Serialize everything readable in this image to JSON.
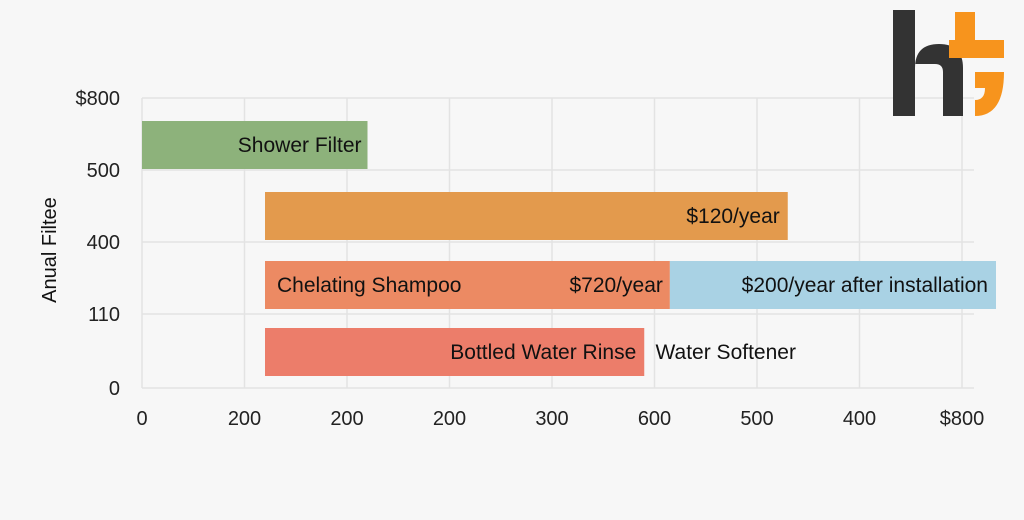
{
  "chart_data": {
    "type": "bar",
    "orientation": "horizontal",
    "ylabel": "Anual Filtee",
    "x_ticks": [
      "0",
      "200",
      "200",
      "200",
      "300",
      "600",
      "500",
      "400",
      "$800"
    ],
    "y_ticks": [
      "$800",
      "500",
      "400",
      "110",
      "0"
    ],
    "grid": true,
    "bars": [
      {
        "row": 0,
        "start_tick": 0,
        "end_tick": 2.2,
        "color": "#8db27b",
        "labels": [
          "Shower Filter"
        ]
      },
      {
        "row": 1,
        "start_tick": 1.2,
        "end_tick": 6.3,
        "color": "#e39a4d",
        "labels": [
          "$120/year"
        ]
      },
      {
        "row": 2,
        "start_tick": 1.2,
        "end_tick": 5.15,
        "color": "#ec8a63",
        "labels": [
          "Chelating Shampoo",
          "$720/year"
        ]
      },
      {
        "row": 2,
        "start_tick": 5.15,
        "end_tick": 8.4,
        "color": "#a9d2e4",
        "labels": [
          "$200/year after installation"
        ]
      },
      {
        "row": 3,
        "start_tick": 1.2,
        "end_tick": 4.9,
        "color": "#ec7d6a",
        "labels": [
          "Bottled Water Rinse"
        ]
      }
    ],
    "annotations": [
      {
        "text": "Water Softener",
        "row": 3,
        "at_tick": 5.0
      }
    ]
  },
  "logo": {
    "colors": {
      "dark": "#333333",
      "accent": "#f7941d"
    }
  }
}
